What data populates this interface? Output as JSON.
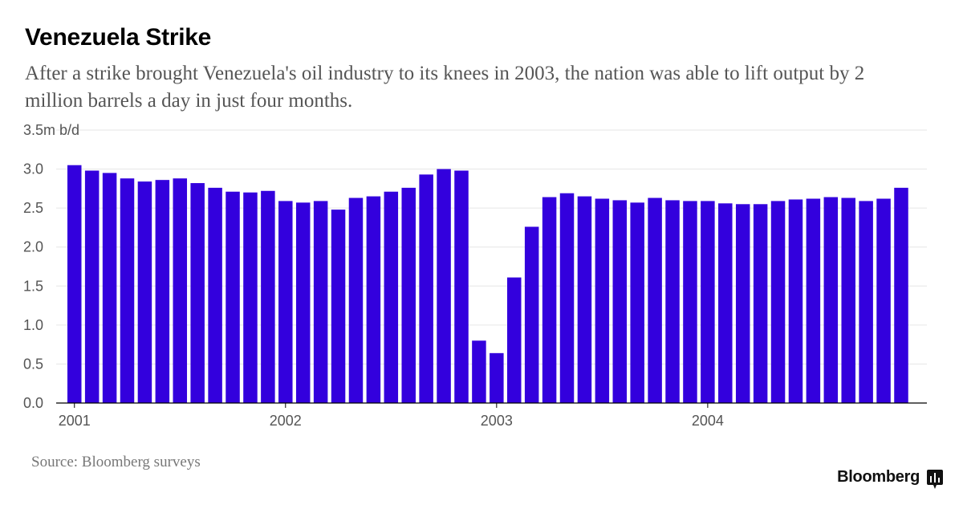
{
  "title": "Venezuela Strike",
  "subtitle": "After a strike brought Venezuela's oil industry to its knees in 2003, the nation was able to lift output by 2 million barrels a day in just four months.",
  "source": "Source: Bloomberg surveys",
  "brand": "Bloomberg",
  "brand_icon": "bloomberg-terminal-icon",
  "colors": {
    "bar": "#3300dd",
    "grid": "#e6e6e6",
    "axis": "#000000",
    "tick_text": "#555555"
  },
  "chart_data": {
    "type": "bar",
    "title": "Venezuela Strike",
    "ylabel": "",
    "xlabel": "",
    "ylim": [
      0,
      3.5
    ],
    "yticks": [
      0.0,
      0.5,
      1.0,
      1.5,
      2.0,
      2.5,
      3.0,
      3.5
    ],
    "ytick_labels": [
      "0.0",
      "0.5",
      "1.0",
      "1.5",
      "2.0",
      "2.5",
      "3.0",
      "3.5m b/d"
    ],
    "x_tick_labels": [
      {
        "label": "2001",
        "index": 0
      },
      {
        "label": "2002",
        "index": 12
      },
      {
        "label": "2003",
        "index": 24
      },
      {
        "label": "2004",
        "index": 36
      }
    ],
    "grid": true,
    "categories": [
      "2001-01",
      "2001-02",
      "2001-03",
      "2001-04",
      "2001-05",
      "2001-06",
      "2001-07",
      "2001-08",
      "2001-09",
      "2001-10",
      "2001-11",
      "2001-12",
      "2002-01",
      "2002-02",
      "2002-03",
      "2002-04",
      "2002-05",
      "2002-06",
      "2002-07",
      "2002-08",
      "2002-09",
      "2002-10",
      "2002-11",
      "2002-12",
      "2003-01",
      "2003-02",
      "2003-03",
      "2003-04",
      "2003-05",
      "2003-06",
      "2003-07",
      "2003-08",
      "2003-09",
      "2003-10",
      "2003-11",
      "2003-12",
      "2004-01",
      "2004-02",
      "2004-03",
      "2004-04",
      "2004-05",
      "2004-06",
      "2004-07",
      "2004-08",
      "2004-09",
      "2004-10",
      "2004-11",
      "2004-12"
    ],
    "values": [
      3.05,
      2.98,
      2.95,
      2.88,
      2.84,
      2.86,
      2.88,
      2.82,
      2.76,
      2.71,
      2.7,
      2.72,
      2.59,
      2.57,
      2.59,
      2.48,
      2.63,
      2.65,
      2.71,
      2.76,
      2.93,
      3.0,
      2.98,
      0.8,
      0.64,
      1.61,
      2.26,
      2.64,
      2.69,
      2.65,
      2.62,
      2.6,
      2.57,
      2.63,
      2.6,
      2.59,
      2.59,
      2.56,
      2.55,
      2.55,
      2.59,
      2.61,
      2.62,
      2.64,
      2.63,
      2.59,
      2.62,
      2.76
    ]
  }
}
